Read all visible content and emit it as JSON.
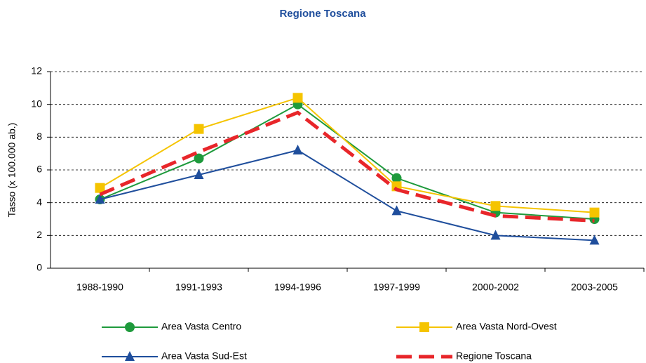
{
  "chart_data": {
    "type": "line",
    "title": "Regione Toscana",
    "y_label": "Tasso (x 100.000 ab.)",
    "categories": [
      "1988-1990",
      "1991-1993",
      "1994-1996",
      "1997-1999",
      "2000-2002",
      "2003-2005"
    ],
    "series": [
      {
        "name": "Area Vasta Centro",
        "color": "#1e9a3c",
        "marker": "circle",
        "values": [
          4.2,
          6.7,
          10.0,
          5.5,
          3.4,
          3.0
        ]
      },
      {
        "name": "Area Vasta Nord-Ovest",
        "color": "#f5c400",
        "marker": "square",
        "values": [
          4.9,
          8.5,
          10.4,
          5.0,
          3.8,
          3.4
        ]
      },
      {
        "name": "Area Vasta Sud-Est",
        "color": "#1f4e9c",
        "marker": "triangle",
        "values": [
          4.2,
          5.7,
          7.2,
          3.5,
          2.0,
          1.7
        ]
      },
      {
        "name": "Regione Toscana",
        "color": "#e8262a",
        "marker": "none",
        "dashed": true,
        "values": [
          4.5,
          7.1,
          9.5,
          4.8,
          3.2,
          2.9
        ]
      }
    ],
    "ylim": [
      0,
      12
    ],
    "yticks": [
      0,
      2,
      4,
      6,
      8,
      10,
      12
    ],
    "grid": true
  }
}
